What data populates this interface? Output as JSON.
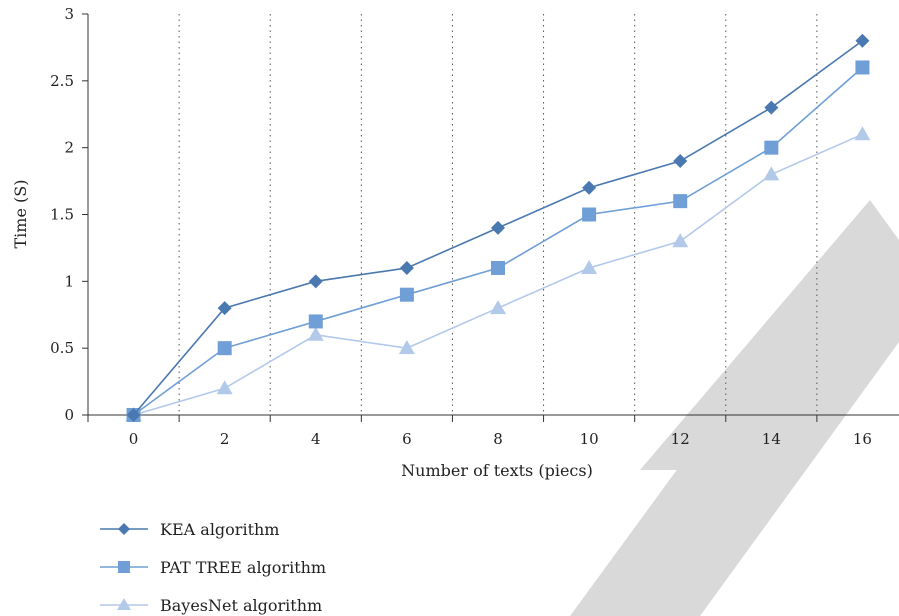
{
  "chart_data": {
    "type": "line",
    "x": [
      0,
      2,
      4,
      6,
      8,
      10,
      12,
      14,
      16
    ],
    "xlabel": "Number of texts (piecs)",
    "ylabel": "Time (S)",
    "ylim": [
      0,
      3
    ],
    "yticks": [
      0,
      0.5,
      1,
      1.5,
      2,
      2.5,
      3
    ],
    "ytick_labels": [
      "0",
      "0.5",
      "1",
      "1.5",
      "2",
      "2.5",
      "3"
    ],
    "grid": "vertical dotted",
    "legend_position": "bottom-left",
    "series": [
      {
        "name": "KEA algorithm",
        "marker": "diamond",
        "color": "#4a78b0",
        "values": [
          0,
          0.8,
          1.0,
          1.1,
          1.4,
          1.7,
          1.9,
          2.3,
          2.8
        ]
      },
      {
        "name": "PAT TREE algorithm",
        "marker": "square",
        "color": "#6f9fd6",
        "values": [
          0,
          0.5,
          0.7,
          0.9,
          1.1,
          1.5,
          1.6,
          2.0,
          2.6
        ]
      },
      {
        "name": "BayesNet algorithm",
        "marker": "triangle",
        "color": "#b3c9ea",
        "values": [
          0,
          0.2,
          0.6,
          0.5,
          0.8,
          1.1,
          1.3,
          1.8,
          2.1
        ]
      }
    ]
  },
  "watermark_color": "#d9d9d9"
}
